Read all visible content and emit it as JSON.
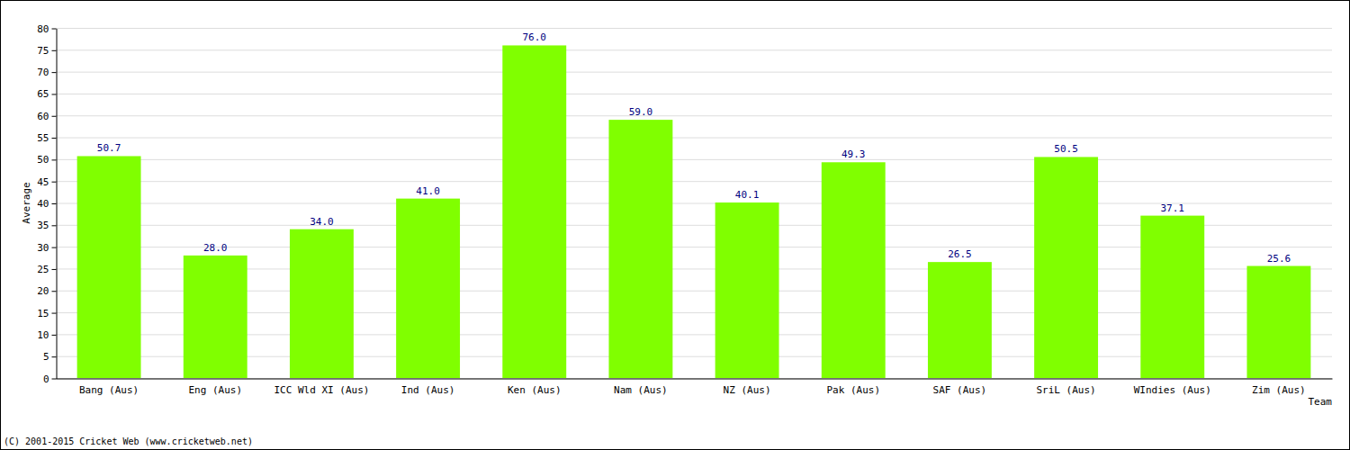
{
  "chart_data": {
    "type": "bar",
    "x_label": "Team",
    "y_label": "Average",
    "categories": [
      "Bang (Aus)",
      "Eng (Aus)",
      "ICC Wld XI (Aus)",
      "Ind (Aus)",
      "Ken (Aus)",
      "Nam (Aus)",
      "NZ (Aus)",
      "Pak (Aus)",
      "SAF (Aus)",
      "SriL (Aus)",
      "WIndies (Aus)",
      "Zim (Aus)"
    ],
    "values": [
      50.7,
      28.0,
      34.0,
      41.0,
      76.0,
      59.0,
      40.1,
      49.3,
      26.5,
      50.5,
      37.1,
      25.6
    ],
    "value_labels": [
      "50.7",
      "28.0",
      "34.0",
      "41.0",
      "76.0",
      "59.0",
      "40.1",
      "49.3",
      "26.5",
      "50.5",
      "37.1",
      "25.6"
    ],
    "data_labels": true,
    "color": "#80ff00",
    "ylim": [
      0,
      80
    ],
    "yticks": [
      0,
      5,
      10,
      15,
      20,
      25,
      30,
      35,
      40,
      45,
      50,
      55,
      60,
      65,
      70,
      75,
      80
    ],
    "grid": true,
    "annotations": [
      "(C) 2001-2015 Cricket Web (www.cricketweb.net)"
    ]
  }
}
